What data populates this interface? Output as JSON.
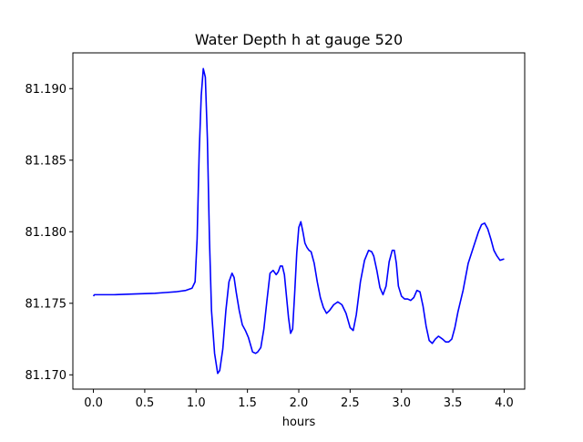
{
  "chart_data": {
    "type": "line",
    "title": "Water Depth h at gauge 520",
    "xlabel": "hours",
    "ylabel": "",
    "xlim": [
      -0.2,
      4.2
    ],
    "ylim": [
      81.169,
      81.1925
    ],
    "xticks": [
      0.0,
      0.5,
      1.0,
      1.5,
      2.0,
      2.5,
      3.0,
      3.5,
      4.0
    ],
    "xtick_labels": [
      "0.0",
      "0.5",
      "1.0",
      "1.5",
      "2.0",
      "2.5",
      "3.0",
      "3.5",
      "4.0"
    ],
    "yticks": [
      81.17,
      81.175,
      81.18,
      81.185,
      81.19
    ],
    "ytick_labels": [
      "81.170",
      "81.175",
      "81.180",
      "81.185",
      "81.190"
    ],
    "grid": false,
    "legend": "none",
    "series": [
      {
        "color": "#0000ff",
        "x": [
          0.0,
          0.01,
          0.2,
          0.4,
          0.6,
          0.7,
          0.8,
          0.9,
          0.96,
          0.99,
          1.01,
          1.03,
          1.05,
          1.07,
          1.09,
          1.11,
          1.13,
          1.15,
          1.18,
          1.21,
          1.23,
          1.26,
          1.29,
          1.32,
          1.35,
          1.37,
          1.39,
          1.42,
          1.45,
          1.48,
          1.51,
          1.55,
          1.58,
          1.6,
          1.63,
          1.66,
          1.69,
          1.72,
          1.75,
          1.78,
          1.8,
          1.82,
          1.84,
          1.86,
          1.88,
          1.9,
          1.92,
          1.94,
          1.96,
          1.98,
          2.0,
          2.02,
          2.04,
          2.06,
          2.08,
          2.1,
          2.12,
          2.15,
          2.18,
          2.21,
          2.24,
          2.27,
          2.3,
          2.34,
          2.38,
          2.42,
          2.46,
          2.5,
          2.53,
          2.56,
          2.6,
          2.64,
          2.68,
          2.71,
          2.73,
          2.76,
          2.79,
          2.82,
          2.85,
          2.88,
          2.91,
          2.93,
          2.95,
          2.97,
          3.0,
          3.03,
          3.06,
          3.09,
          3.12,
          3.15,
          3.18,
          3.21,
          3.24,
          3.27,
          3.3,
          3.33,
          3.36,
          3.4,
          3.43,
          3.46,
          3.49,
          3.52,
          3.55,
          3.6,
          3.65,
          3.7,
          3.75,
          3.78,
          3.81,
          3.84,
          3.87,
          3.9,
          3.93,
          3.96,
          4.0
        ],
        "y": [
          81.1755,
          81.1756,
          81.1756,
          81.17565,
          81.1757,
          81.17575,
          81.1758,
          81.1759,
          81.17605,
          81.1765,
          81.1795,
          81.1855,
          81.1895,
          81.1914,
          81.1908,
          81.1865,
          81.1795,
          81.1745,
          81.1715,
          81.1701,
          81.1703,
          81.1718,
          81.1745,
          81.1765,
          81.1771,
          81.1768,
          81.1758,
          81.1745,
          81.1735,
          81.1731,
          81.1726,
          81.1716,
          81.1715,
          81.1716,
          81.1719,
          81.1732,
          81.1752,
          81.1771,
          81.1773,
          81.177,
          81.1772,
          81.1776,
          81.1776,
          81.177,
          81.1755,
          81.174,
          81.1729,
          81.1732,
          81.1757,
          81.1785,
          81.1803,
          81.1807,
          81.18,
          81.1792,
          81.1789,
          81.1787,
          81.1786,
          81.1778,
          81.1765,
          81.1754,
          81.1747,
          81.1743,
          81.1745,
          81.1749,
          81.1751,
          81.1749,
          81.1743,
          81.1733,
          81.1731,
          81.1742,
          81.1765,
          81.178,
          81.1787,
          81.1786,
          81.1783,
          81.1773,
          81.1761,
          81.1756,
          81.1762,
          81.1779,
          81.1787,
          81.1787,
          81.1778,
          81.1762,
          81.1755,
          81.1753,
          81.1753,
          81.1752,
          81.1754,
          81.1759,
          81.1758,
          81.1748,
          81.1734,
          81.1724,
          81.1722,
          81.1725,
          81.1727,
          81.1725,
          81.1723,
          81.1723,
          81.1725,
          81.1733,
          81.1744,
          81.1759,
          81.1778,
          81.1789,
          81.18,
          81.1805,
          81.1806,
          81.1802,
          81.1795,
          81.1787,
          81.1783,
          81.178,
          81.1781
        ]
      }
    ]
  }
}
